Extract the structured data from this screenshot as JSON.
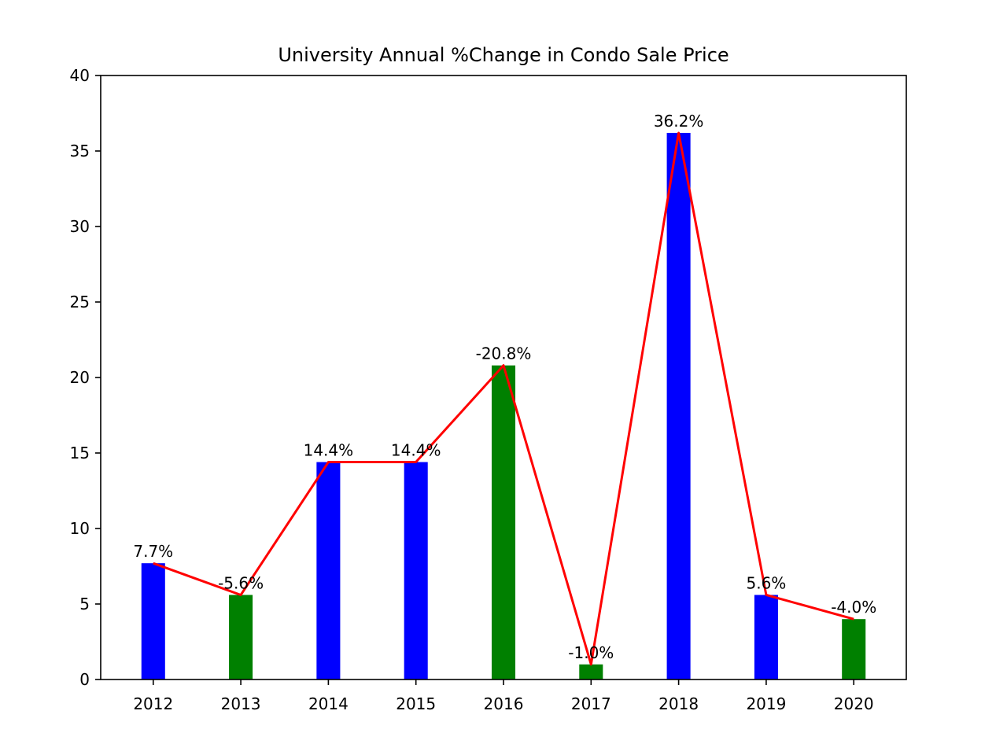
{
  "chart_data": {
    "type": "bar",
    "title": "University Annual %Change in Condo Sale Price",
    "xlabel": "",
    "ylabel": "",
    "categories": [
      "2012",
      "2013",
      "2014",
      "2015",
      "2016",
      "2017",
      "2018",
      "2019",
      "2020"
    ],
    "values": [
      7.7,
      5.6,
      14.4,
      14.4,
      20.8,
      1.0,
      36.2,
      5.6,
      4.0
    ],
    "bar_labels": [
      "7.7%",
      "-5.6%",
      "14.4%",
      "14.4%",
      "-20.8%",
      "-1.0%",
      "36.2%",
      "5.6%",
      "-4.0%"
    ],
    "bar_colors": [
      "#0000ff",
      "#008000",
      "#0000ff",
      "#0000ff",
      "#008000",
      "#008000",
      "#0000ff",
      "#0000ff",
      "#008000"
    ],
    "line": {
      "values": [
        7.7,
        5.6,
        14.4,
        14.4,
        20.8,
        1.0,
        36.2,
        5.6,
        4.0
      ],
      "color": "#ff0000"
    },
    "ylim": [
      0,
      40
    ],
    "yticks": [
      0,
      5,
      10,
      15,
      20,
      25,
      30,
      35,
      40
    ],
    "grid": false,
    "legend": "none"
  }
}
